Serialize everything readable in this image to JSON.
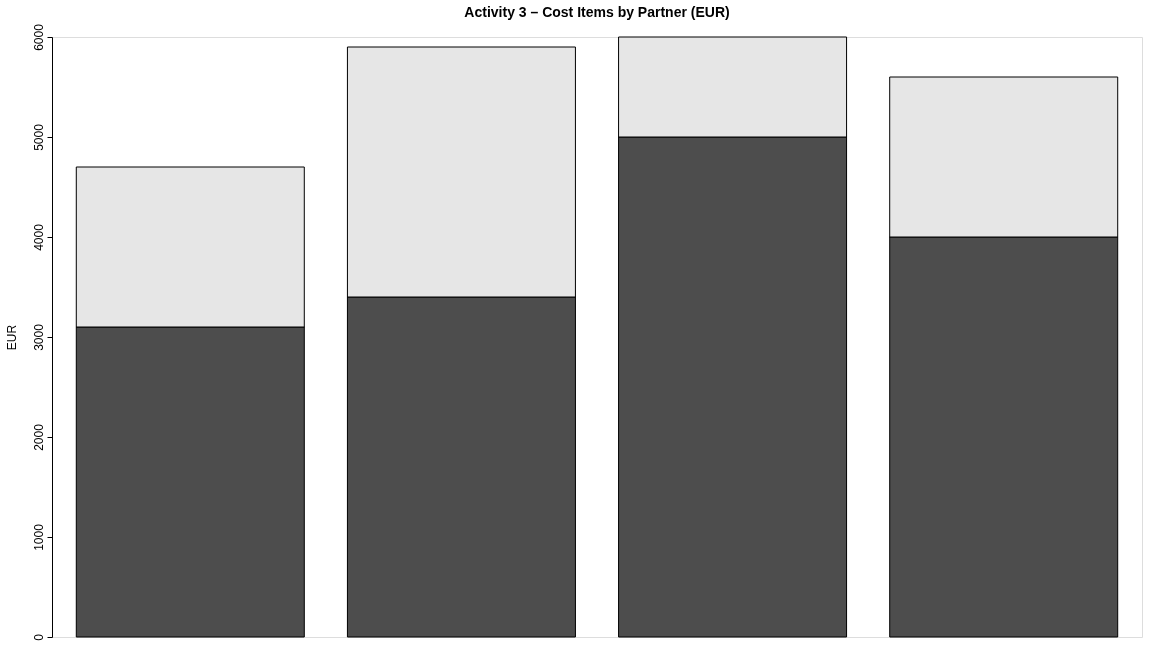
{
  "chart_data": {
    "type": "bar",
    "title": "Activity 3 – Cost Items by Partner (EUR)",
    "ylabel": "EUR",
    "categories": [
      null,
      null,
      null,
      null
    ],
    "stacked": true,
    "series": [
      {
        "color": "#4d4d4d",
        "values": [
          3100,
          3400,
          5000,
          4000
        ]
      },
      {
        "color": "#e6e6e6",
        "values": [
          1600,
          2500,
          1000,
          1600
        ]
      }
    ],
    "ylim": [
      0,
      6000
    ],
    "yticks": [
      0,
      1000,
      2000,
      3000,
      4000,
      5000,
      6000
    ],
    "grid": false,
    "legend": false,
    "tick_labels": "y"
  }
}
